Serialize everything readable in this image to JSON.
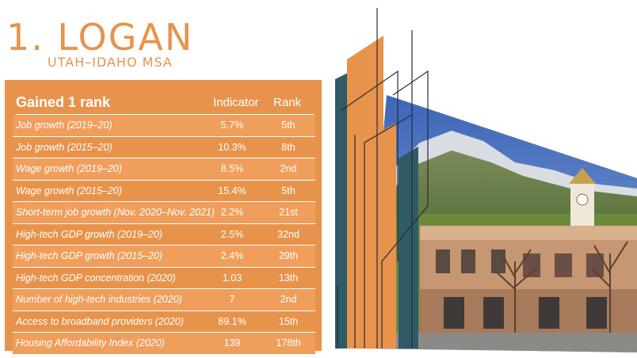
{
  "header": {
    "title": "1. LOGAN",
    "subtitle": "UTAH–IDAHO MSA"
  },
  "table": {
    "heading": "Gained 1 rank",
    "col_indicator": "Indicator",
    "col_rank": "Rank",
    "rows": [
      {
        "label": "Job growth (2019–20)",
        "indicator": "5.7%",
        "rank": "5th"
      },
      {
        "label": "Job growth (2015–20)",
        "indicator": "10.3%",
        "rank": "8th"
      },
      {
        "label": "Wage growth (2019–20)",
        "indicator": "8.5%",
        "rank": "2nd"
      },
      {
        "label": "Wage growth (2015–20)",
        "indicator": "15.4%",
        "rank": "5th"
      },
      {
        "label": "Short-term job growth (Nov. 2020–Nov. 2021)",
        "indicator": "2.2%",
        "rank": "21st"
      },
      {
        "label": "High-tech GDP growth (2019–20)",
        "indicator": "2.5%",
        "rank": "32nd"
      },
      {
        "label": "High-tech GDP growth (2015–20)",
        "indicator": "2.4%",
        "rank": "29th"
      },
      {
        "label": "High-tech GDP concentration (2020)",
        "indicator": "1.03",
        "rank": "13th"
      },
      {
        "label": "Number of high-tech industries (2020)",
        "indicator": "7",
        "rank": "2nd"
      },
      {
        "label": "Access to broadband providers (2020)",
        "indicator": "89.1%",
        "rank": "15th"
      },
      {
        "label": "Housing Affordability Index (2020)",
        "indicator": "139",
        "rank": "178th"
      }
    ]
  },
  "colors": {
    "accent": "#e8934b",
    "teal": "#2f5b66",
    "sky": "#3d68b8"
  }
}
